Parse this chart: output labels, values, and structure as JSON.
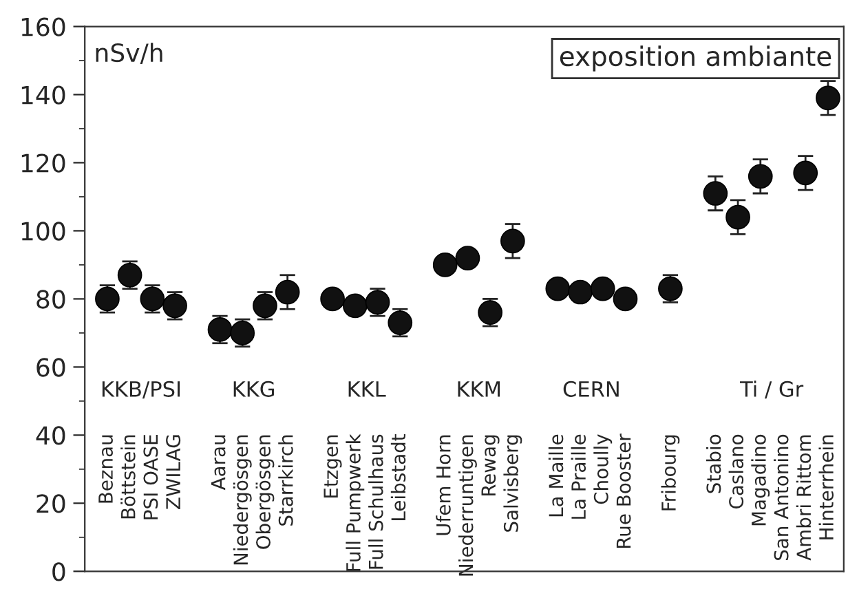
{
  "chart_data": {
    "type": "scatter",
    "title": "exposition ambiante",
    "ylabel": "nSv/h",
    "categories": [
      "Beznau",
      "Böttstein",
      "PSI OASE",
      "ZWILAG",
      null,
      "Aarau",
      "Niedergösgen",
      "Obergösgen",
      "Starrkirch",
      null,
      "Etzgen",
      "Full Pumpwerk",
      "Full Schulhaus",
      "Leibstadt",
      null,
      "Ufem Horn",
      "Niederruntigen",
      "Rewag",
      "Salvisberg",
      null,
      "La Maille",
      "La Praille",
      "Choully",
      "Rue Booster",
      null,
      "Fribourg",
      null,
      "Stabio",
      "Caslano",
      "Magadino",
      "San Antonino",
      "Ambri Rittom",
      "Hinterrhein"
    ],
    "series": [
      {
        "color": "#111111",
        "values": [
          80,
          87,
          80,
          78,
          null,
          71,
          70,
          78,
          82,
          null,
          80,
          78,
          79,
          73,
          null,
          90,
          92,
          76,
          97,
          null,
          83,
          82,
          83,
          80,
          null,
          83,
          null,
          111,
          104,
          116,
          null,
          117,
          139
        ],
        "errors": [
          4,
          4,
          4,
          4,
          null,
          4,
          4,
          4,
          5,
          null,
          null,
          null,
          4,
          4,
          null,
          null,
          null,
          4,
          5,
          null,
          null,
          null,
          null,
          null,
          null,
          4,
          null,
          5,
          5,
          5,
          null,
          5,
          5
        ]
      }
    ],
    "ylim": [
      0,
      160
    ],
    "yticks": [
      0,
      20,
      40,
      60,
      80,
      100,
      120,
      140,
      160
    ],
    "marker": "circle",
    "grid": false,
    "legend": false,
    "annotations": [
      "KKB/PSI",
      "KKG",
      "KKL",
      "KKM",
      "CERN",
      "Ti / Gr"
    ]
  }
}
